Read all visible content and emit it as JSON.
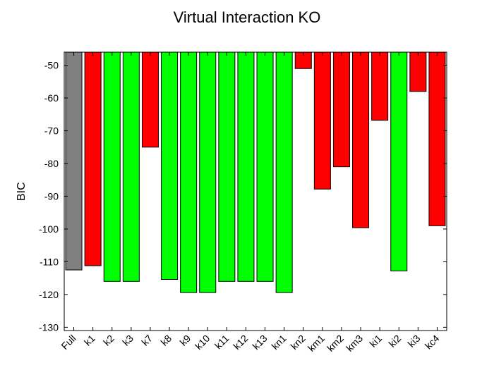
{
  "chart_data": {
    "type": "bar",
    "title": "Virtual Interaction KO",
    "xlabel": "",
    "ylabel": "BIC",
    "ylim": [
      -131,
      -46
    ],
    "yticks": [
      -50,
      -60,
      -70,
      -80,
      -90,
      -100,
      -110,
      -120,
      -130
    ],
    "bar_baseline": -46,
    "grid": false,
    "colors": {
      "gray": "#808080",
      "red": "#ff0000",
      "green": "#00ff00"
    },
    "categories": [
      "Full",
      "k1",
      "k2",
      "k3",
      "k7",
      "k8",
      "k9",
      "k10",
      "k11",
      "k12",
      "k13",
      "kn1",
      "kn2",
      "km1",
      "km2",
      "km3",
      "ki1",
      "ki2",
      "ki3",
      "kc4"
    ],
    "values": [
      -112.5,
      -111.2,
      -116.0,
      -116.0,
      -75.0,
      -115.4,
      -119.4,
      -119.4,
      -116.0,
      -116.0,
      -116.0,
      -119.4,
      -51.0,
      -87.8,
      -81.0,
      -99.6,
      -66.8,
      -112.8,
      -58.0,
      -99.0
    ],
    "bar_colors": [
      "gray",
      "red",
      "green",
      "green",
      "red",
      "green",
      "green",
      "green",
      "green",
      "green",
      "green",
      "green",
      "red",
      "red",
      "red",
      "red",
      "red",
      "green",
      "red",
      "red"
    ]
  }
}
